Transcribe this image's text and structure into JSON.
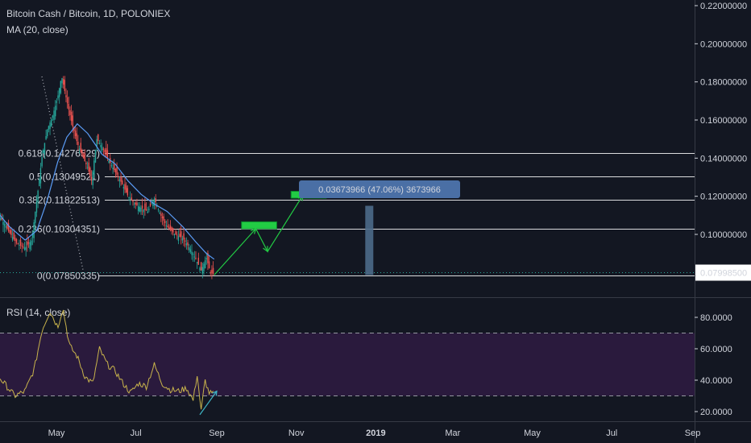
{
  "header": {
    "title": "Bitcoin Cash / Bitcoin, 1D, POLONIEX",
    "ma_label": "MA (20, close)",
    "rsi_label": "RSI (14, close)"
  },
  "colors": {
    "background": "#131722",
    "up": "#26a69a",
    "down": "#ef5350",
    "ma": "#5b9cf6",
    "rsi_line": "#c9b44c",
    "rsi_band": "#2a1a3d",
    "projection": "#22cc44",
    "measure_box": "#4d6a8a",
    "last_price_bg": "#ffffff",
    "grid_line": "#ffffff"
  },
  "chart_data": [
    {
      "type": "candlestick",
      "x_axis": {
        "tick_labels": [
          "May",
          "Jul",
          "Sep",
          "Nov",
          "2019",
          "Mar",
          "May",
          "Jul",
          "Sep"
        ],
        "tick_dates": [
          "2018-05-01",
          "2018-07-01",
          "2018-09-01",
          "2018-11-01",
          "2019-01-01",
          "2019-03-01",
          "2019-05-01",
          "2019-07-01",
          "2019-09-01"
        ]
      },
      "y_axis": {
        "ylim": [
          0.072,
          0.22
        ],
        "tick_labels": [
          "0.22000000",
          "0.20000000",
          "0.18000000",
          "0.16000000",
          "0.14000000",
          "0.12000000",
          "0.10000000"
        ],
        "tick_values": [
          0.22,
          0.2,
          0.18,
          0.16,
          0.14,
          0.12,
          0.1
        ]
      },
      "last_price": {
        "value": 0.079985,
        "label": "0.07998500"
      },
      "fibonacci": [
        {
          "label": "0.618(0.14276529)",
          "price": 0.14276529
        },
        {
          "label": "0.5(0.13049521)",
          "price": 0.13049521
        },
        {
          "label": "0.382(0.11822513)",
          "price": 0.11822513
        },
        {
          "label": "0.236(0.10304351)",
          "price": 0.10304351
        },
        {
          "label": "0(0.07850335)",
          "price": 0.07850335
        }
      ],
      "close_series": [
        {
          "date": "2018-03-14",
          "close": 0.112
        },
        {
          "date": "2018-03-20",
          "close": 0.108
        },
        {
          "date": "2018-03-26",
          "close": 0.101
        },
        {
          "date": "2018-04-01",
          "close": 0.095
        },
        {
          "date": "2018-04-07",
          "close": 0.093
        },
        {
          "date": "2018-04-12",
          "close": 0.097
        },
        {
          "date": "2018-04-16",
          "close": 0.118
        },
        {
          "date": "2018-04-20",
          "close": 0.141
        },
        {
          "date": "2018-04-24",
          "close": 0.155
        },
        {
          "date": "2018-04-28",
          "close": 0.162
        },
        {
          "date": "2018-05-02",
          "close": 0.172
        },
        {
          "date": "2018-05-05",
          "close": 0.183
        },
        {
          "date": "2018-05-09",
          "close": 0.17
        },
        {
          "date": "2018-05-13",
          "close": 0.158
        },
        {
          "date": "2018-05-17",
          "close": 0.148
        },
        {
          "date": "2018-05-21",
          "close": 0.141
        },
        {
          "date": "2018-05-25",
          "close": 0.135
        },
        {
          "date": "2018-05-28",
          "close": 0.128
        },
        {
          "date": "2018-06-01",
          "close": 0.15
        },
        {
          "date": "2018-06-05",
          "close": 0.146
        },
        {
          "date": "2018-06-10",
          "close": 0.139
        },
        {
          "date": "2018-06-15",
          "close": 0.133
        },
        {
          "date": "2018-06-20",
          "close": 0.127
        },
        {
          "date": "2018-06-25",
          "close": 0.12
        },
        {
          "date": "2018-06-30",
          "close": 0.116
        },
        {
          "date": "2018-07-05",
          "close": 0.114
        },
        {
          "date": "2018-07-10",
          "close": 0.112
        },
        {
          "date": "2018-07-15",
          "close": 0.119
        },
        {
          "date": "2018-07-20",
          "close": 0.11
        },
        {
          "date": "2018-07-25",
          "close": 0.104
        },
        {
          "date": "2018-07-31",
          "close": 0.1
        },
        {
          "date": "2018-08-06",
          "close": 0.098
        },
        {
          "date": "2018-08-12",
          "close": 0.092
        },
        {
          "date": "2018-08-16",
          "close": 0.087
        },
        {
          "date": "2018-08-20",
          "close": 0.081
        },
        {
          "date": "2018-08-24",
          "close": 0.088
        },
        {
          "date": "2018-08-27",
          "close": 0.08
        },
        {
          "date": "2018-08-30",
          "close": 0.079
        }
      ],
      "ma_series": [
        {
          "date": "2018-03-14",
          "value": 0.114
        },
        {
          "date": "2018-03-26",
          "value": 0.104
        },
        {
          "date": "2018-04-07",
          "value": 0.097
        },
        {
          "date": "2018-04-16",
          "value": 0.102
        },
        {
          "date": "2018-04-24",
          "value": 0.118
        },
        {
          "date": "2018-05-02",
          "value": 0.138
        },
        {
          "date": "2018-05-09",
          "value": 0.151
        },
        {
          "date": "2018-05-17",
          "value": 0.158
        },
        {
          "date": "2018-05-25",
          "value": 0.153
        },
        {
          "date": "2018-06-05",
          "value": 0.142
        },
        {
          "date": "2018-06-15",
          "value": 0.137
        },
        {
          "date": "2018-06-25",
          "value": 0.128
        },
        {
          "date": "2018-07-05",
          "value": 0.121
        },
        {
          "date": "2018-07-15",
          "value": 0.116
        },
        {
          "date": "2018-07-25",
          "value": 0.112
        },
        {
          "date": "2018-08-06",
          "value": 0.104
        },
        {
          "date": "2018-08-16",
          "value": 0.096
        },
        {
          "date": "2018-08-24",
          "value": 0.09
        },
        {
          "date": "2018-08-30",
          "value": 0.087
        }
      ],
      "projection_path": [
        {
          "date": "2018-08-30",
          "price": 0.0787
        },
        {
          "date": "2018-10-01",
          "price": 0.103
        },
        {
          "date": "2018-10-10",
          "price": 0.091
        },
        {
          "date": "2018-11-06",
          "price": 0.1205
        }
      ],
      "projection_boxes": [
        {
          "date_start": "2018-09-20",
          "date_end": "2018-10-17",
          "price_top": 0.1066,
          "price_bottom": 0.1029
        },
        {
          "date_start": "2018-10-28",
          "date_end": "2018-11-24",
          "price_top": 0.1226,
          "price_bottom": 0.119
        }
      ],
      "measure": {
        "label": "0.03673966 (47.06%) 3673966",
        "date": "2018-12-27",
        "price_top": 0.115,
        "price_bottom": 0.0787
      }
    },
    {
      "type": "line",
      "name": "RSI (14, close)",
      "y_axis": {
        "ylim": [
          15,
          90
        ],
        "tick_labels": [
          "80.0000",
          "60.0000",
          "40.0000",
          "20.0000"
        ],
        "tick_values": [
          80,
          60,
          40,
          20
        ]
      },
      "bands": {
        "upper": 70,
        "lower": 30
      },
      "values": [
        {
          "date": "2018-03-14",
          "rsi": 46
        },
        {
          "date": "2018-03-22",
          "rsi": 38
        },
        {
          "date": "2018-03-30",
          "rsi": 30
        },
        {
          "date": "2018-04-07",
          "rsi": 33
        },
        {
          "date": "2018-04-14",
          "rsi": 47
        },
        {
          "date": "2018-04-20",
          "rsi": 72
        },
        {
          "date": "2018-04-26",
          "rsi": 84
        },
        {
          "date": "2018-05-02",
          "rsi": 74
        },
        {
          "date": "2018-05-06",
          "rsi": 86
        },
        {
          "date": "2018-05-11",
          "rsi": 62
        },
        {
          "date": "2018-05-17",
          "rsi": 55
        },
        {
          "date": "2018-05-23",
          "rsi": 42
        },
        {
          "date": "2018-05-29",
          "rsi": 38
        },
        {
          "date": "2018-06-03",
          "rsi": 60
        },
        {
          "date": "2018-06-09",
          "rsi": 50
        },
        {
          "date": "2018-06-15",
          "rsi": 46
        },
        {
          "date": "2018-06-21",
          "rsi": 38
        },
        {
          "date": "2018-06-27",
          "rsi": 32
        },
        {
          "date": "2018-07-03",
          "rsi": 38
        },
        {
          "date": "2018-07-09",
          "rsi": 36
        },
        {
          "date": "2018-07-15",
          "rsi": 50
        },
        {
          "date": "2018-07-21",
          "rsi": 38
        },
        {
          "date": "2018-07-27",
          "rsi": 34
        },
        {
          "date": "2018-08-03",
          "rsi": 33
        },
        {
          "date": "2018-08-09",
          "rsi": 35
        },
        {
          "date": "2018-08-14",
          "rsi": 27
        },
        {
          "date": "2018-08-17",
          "rsi": 44
        },
        {
          "date": "2018-08-20",
          "rsi": 20
        },
        {
          "date": "2018-08-23",
          "rsi": 40
        },
        {
          "date": "2018-08-26",
          "rsi": 32
        },
        {
          "date": "2018-08-30",
          "rsi": 31
        }
      ],
      "trend_arrow": [
        {
          "date": "2018-08-19",
          "rsi": 18
        },
        {
          "date": "2018-09-01",
          "rsi": 33
        }
      ]
    }
  ]
}
